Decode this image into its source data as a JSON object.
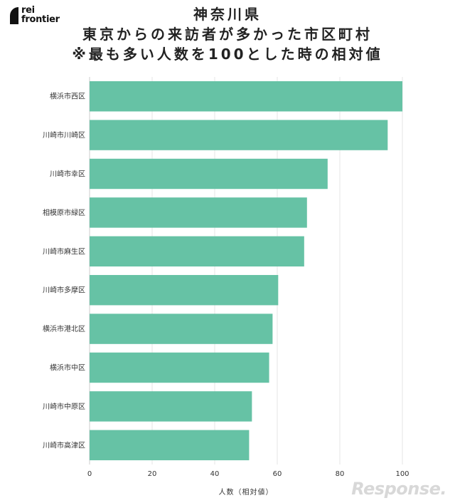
{
  "brand": {
    "line1": "rei",
    "line2": "frontier"
  },
  "title_lines": [
    "神奈川県",
    "東京からの来訪者が多かった市区町村",
    "※最も多い人数を100とした時の相対値"
  ],
  "watermark": "Response.",
  "colors": {
    "bar": "#66c2a5",
    "grid": "#e6e6e6",
    "axis": "#cccccc"
  },
  "chart_data": {
    "type": "bar",
    "orientation": "horizontal",
    "categories": [
      "横浜市西区",
      "川崎市川崎区",
      "川崎市幸区",
      "相模原市緑区",
      "川崎市麻生区",
      "川崎市多摩区",
      "横浜市港北区",
      "横浜市中区",
      "川崎市中原区",
      "川崎市高津区"
    ],
    "values": [
      100,
      95.3,
      76.1,
      69.5,
      68.6,
      60.3,
      58.5,
      57.4,
      51.9,
      51.0
    ],
    "xlabel": "人数（相対値）",
    "xlim": [
      0,
      100
    ],
    "xticks": [
      "0",
      "20",
      "40",
      "60",
      "80",
      "100"
    ],
    "grid": true
  }
}
